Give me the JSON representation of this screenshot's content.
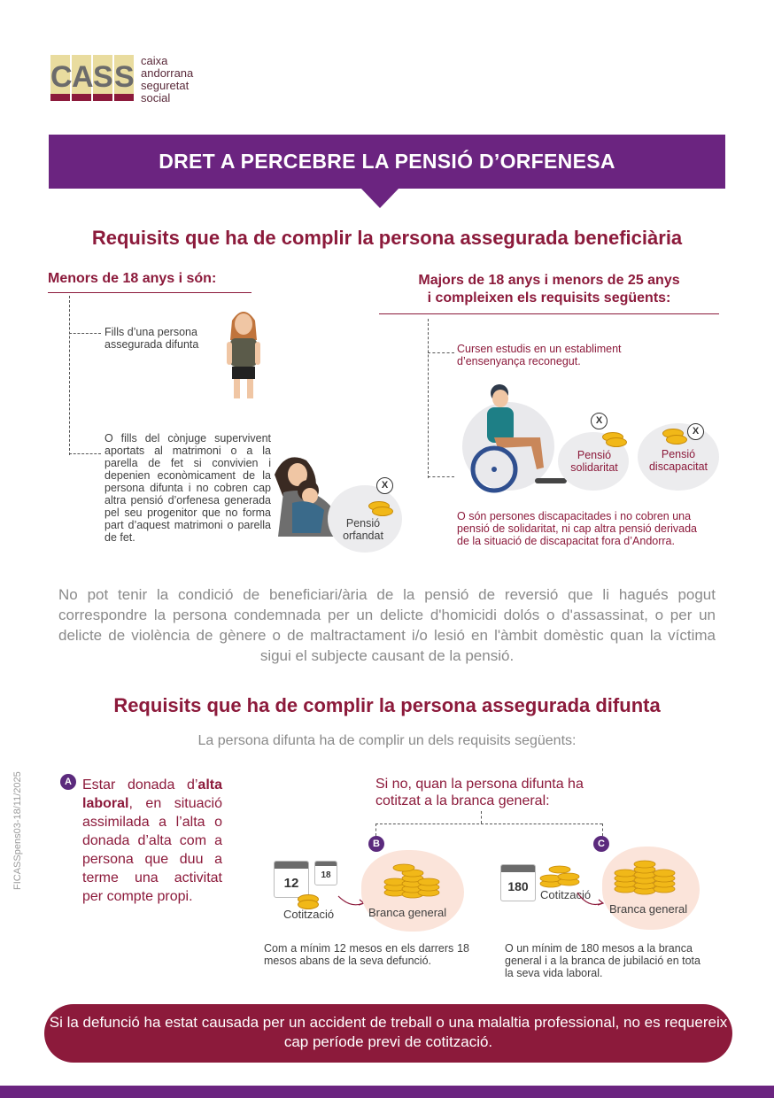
{
  "logo": {
    "letters": [
      "C",
      "A",
      "S",
      "S"
    ],
    "lines": [
      "caixa",
      "andorrana",
      "seguretat",
      "social"
    ]
  },
  "banner": "DRET A PERCEBRE LA PENSIÓ D’ORFENESA",
  "section1": {
    "title": "Requisits que ha de complir la persona assegurada beneficiària",
    "left_heading": "Menors de 18 anys i són:",
    "left_item1": "Fills d’una persona assegurada difunta",
    "left_item2": "O fills del cònjuge supervivent aportats al matrimoni o a la parella de fet si convivien i depenien econòmicament de la persona difunta i no cobren cap altra pensió d’orfenesa generada pel seu progenitor que no forma part d’aquest matrimoni o parella de fet.",
    "pension_orfandat": "Pensió orfandat",
    "right_heading_1": "Majors de 18 anys i menors de 25 anys",
    "right_heading_2": "i compleixen els requisits següents:",
    "right_item1": "Cursen estudis en un establiment d’ensenyança reconegut.",
    "pension_solidaritat": "Pensió solidaritat",
    "pension_discapacitat": "Pensió discapacitat",
    "right_item2": "O són persones discapacitades i no cobren una pensió de solidaritat, ni cap altra pensió derivada de la situació de discapacitat fora d’Andorra.",
    "x_mark": "X"
  },
  "exclusion": "No pot tenir la condició de beneficiari/ària de la pensió de reversió que li hagués pogut correspondre la persona condemnada per un delicte d'homicidi dolós o d'assassinat, o per un delicte de violència de gènere o de maltractament i/o lesió en l'àmbit domèstic quan la víctima sigui el subjecte causant de la pensió.",
  "section2": {
    "title": "Requisits que ha de complir la persona assegurada difunta",
    "subtitle": "La persona difunta ha de complir un dels requisits següents:",
    "a_letter": "A",
    "a_text_pre": "Estar donada d’",
    "a_text_bold": "alta laboral",
    "a_text_post": ", en situació assimilada a l’alta o donada d’alta com a persona que duu a terme una activitat per compte propi.",
    "if_not": "Si no, quan la persona difunta ha cotitzat a la branca general:",
    "b_letter": "B",
    "c_letter": "C",
    "cal_12": "12",
    "cal_18": "18",
    "cal_180": "180",
    "cotitzacio": "Cotització",
    "branca_general": "Branca general",
    "b_text": "Com a mínim 12 mesos en els darrers 18 mesos abans de la seva defunció.",
    "c_text": "O un mínim de 180 mesos a la branca general i a la branca de jubilació en tota la seva vida laboral."
  },
  "footer": "Si la defunció ha estat causada per un accident de treball o una malaltia professional, no es requereix cap període previ de cotització.",
  "doc_code": "FICASSpens03-18/11/2025",
  "colors": {
    "purple": "#6b2480",
    "maroon": "#8c1a3b",
    "gold": "#f1b818",
    "logo_bg": "#e9dc9f"
  }
}
